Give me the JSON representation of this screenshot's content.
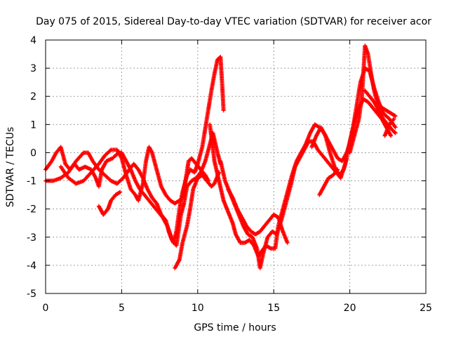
{
  "chart_data": {
    "type": "scatter",
    "title": "Day 075 of 2015, Sidereal Day-to-day VTEC variation (SDTVAR) for receiver acor",
    "xlabel": "GPS time / hours",
    "ylabel": "SDTVAR / TECUs",
    "xlim": [
      0,
      25
    ],
    "ylim": [
      -5,
      4
    ],
    "xticks": [
      "0",
      "5",
      "10",
      "15",
      "20",
      "25"
    ],
    "yticks": [
      "-5",
      "-4",
      "-3",
      "-2",
      "-1",
      "0",
      "1",
      "2",
      "3",
      "4"
    ],
    "grid": true,
    "marker": "plus",
    "color": "#ff0000",
    "series": [
      {
        "name": "SDTVAR",
        "tracks": [
          [
            [
              0,
              -0.6
            ],
            [
              0.4,
              -0.3
            ],
            [
              0.7,
              0.0
            ],
            [
              1.0,
              0.2
            ],
            [
              1.3,
              -0.4
            ],
            [
              1.6,
              -0.6
            ],
            [
              1.9,
              -0.4
            ],
            [
              2.2,
              -0.6
            ],
            [
              2.6,
              -0.5
            ],
            [
              3.0,
              -0.6
            ],
            [
              3.3,
              -0.9
            ],
            [
              3.5,
              -1.2
            ],
            [
              3.7,
              -0.6
            ],
            [
              4.0,
              -0.3
            ],
            [
              4.4,
              -0.2
            ],
            [
              4.8,
              0.0
            ],
            [
              5.0,
              0.0
            ],
            [
              5.3,
              -0.3
            ],
            [
              5.6,
              -0.6
            ],
            [
              5.9,
              -1.0
            ],
            [
              6.2,
              -1.3
            ],
            [
              6.5,
              -1.5
            ],
            [
              6.8,
              -1.7
            ],
            [
              7.1,
              -1.9
            ],
            [
              7.4,
              -2.1
            ],
            [
              7.7,
              -2.3
            ],
            [
              8.0,
              -2.6
            ],
            [
              8.2,
              -2.9
            ],
            [
              8.4,
              -3.2
            ],
            [
              8.6,
              -2.8
            ],
            [
              8.8,
              -2.0
            ],
            [
              9.0,
              -1.4
            ],
            [
              9.3,
              -0.8
            ],
            [
              9.5,
              -0.6
            ],
            [
              9.8,
              -0.7
            ],
            [
              10.0,
              -0.4
            ],
            [
              10.3,
              0.2
            ],
            [
              10.6,
              1.2
            ],
            [
              10.9,
              2.2
            ],
            [
              11.1,
              2.8
            ],
            [
              11.3,
              3.3
            ],
            [
              11.5,
              3.4
            ],
            [
              11.6,
              2.5
            ],
            [
              11.7,
              1.5
            ]
          ],
          [
            [
              0,
              -1.0
            ],
            [
              0.5,
              -1.0
            ],
            [
              1.0,
              -0.9
            ],
            [
              1.5,
              -0.7
            ],
            [
              2.0,
              -0.3
            ],
            [
              2.5,
              0.0
            ],
            [
              2.8,
              0.0
            ],
            [
              3.1,
              -0.3
            ],
            [
              3.5,
              -0.6
            ],
            [
              3.9,
              -0.8
            ],
            [
              4.3,
              -1.0
            ],
            [
              4.7,
              -1.1
            ],
            [
              5.1,
              -0.9
            ],
            [
              5.5,
              -0.6
            ],
            [
              5.8,
              -0.4
            ],
            [
              6.1,
              -0.6
            ],
            [
              6.4,
              -0.9
            ],
            [
              6.7,
              -1.3
            ],
            [
              7.0,
              -1.6
            ],
            [
              7.3,
              -1.8
            ],
            [
              7.6,
              -2.2
            ],
            [
              7.9,
              -2.4
            ],
            [
              8.1,
              -2.8
            ],
            [
              8.3,
              -3.1
            ],
            [
              8.6,
              -3.3
            ],
            [
              8.9,
              -2.2
            ],
            [
              9.1,
              -1.8
            ],
            [
              9.3,
              -1.2
            ],
            [
              9.6,
              -1.0
            ],
            [
              9.9,
              -0.9
            ],
            [
              10.2,
              -0.7
            ],
            [
              10.5,
              -0.3
            ],
            [
              10.8,
              0.3
            ],
            [
              11.0,
              0.7
            ],
            [
              11.3,
              0.0
            ],
            [
              11.5,
              -0.4
            ]
          ],
          [
            [
              1.0,
              -0.5
            ],
            [
              1.5,
              -0.9
            ],
            [
              2.0,
              -1.1
            ],
            [
              2.5,
              -1.0
            ],
            [
              3.0,
              -0.7
            ],
            [
              3.5,
              -0.4
            ],
            [
              3.9,
              -0.1
            ],
            [
              4.3,
              0.1
            ],
            [
              4.7,
              0.1
            ],
            [
              5.0,
              -0.2
            ],
            [
              5.3,
              -0.8
            ],
            [
              5.6,
              -1.3
            ],
            [
              5.9,
              -1.5
            ],
            [
              6.1,
              -1.7
            ],
            [
              6.4,
              -1.1
            ],
            [
              6.6,
              -0.3
            ],
            [
              6.8,
              0.2
            ],
            [
              7.0,
              0.0
            ],
            [
              7.3,
              -0.6
            ],
            [
              7.6,
              -1.2
            ],
            [
              7.9,
              -1.5
            ],
            [
              8.2,
              -1.7
            ],
            [
              8.5,
              -1.8
            ],
            [
              8.8,
              -1.7
            ],
            [
              9.0,
              -1.6
            ],
            [
              9.2,
              -1.0
            ],
            [
              9.4,
              -0.3
            ],
            [
              9.6,
              -0.2
            ],
            [
              9.9,
              -0.4
            ],
            [
              10.2,
              -0.6
            ],
            [
              10.5,
              -0.8
            ],
            [
              10.7,
              -1.0
            ]
          ],
          [
            [
              3.5,
              -1.9
            ],
            [
              3.8,
              -2.2
            ],
            [
              4.1,
              -2.0
            ],
            [
              4.3,
              -1.7
            ],
            [
              4.6,
              -1.5
            ],
            [
              4.9,
              -1.4
            ]
          ],
          [
            [
              8.5,
              -4.1
            ],
            [
              8.8,
              -3.8
            ],
            [
              9.0,
              -3.2
            ],
            [
              9.3,
              -2.6
            ],
            [
              9.5,
              -2.0
            ],
            [
              9.7,
              -1.3
            ],
            [
              10.0,
              -0.9
            ],
            [
              10.3,
              -0.8
            ],
            [
              10.6,
              -1.0
            ],
            [
              10.9,
              -1.2
            ],
            [
              11.1,
              -1.1
            ],
            [
              11.4,
              -0.7
            ]
          ],
          [
            [
              10.8,
              1.0
            ],
            [
              11.1,
              -0.3
            ],
            [
              11.4,
              -1.0
            ],
            [
              11.7,
              -1.7
            ],
            [
              12.0,
              -2.1
            ],
            [
              12.3,
              -2.5
            ],
            [
              12.5,
              -2.9
            ],
            [
              12.8,
              -3.2
            ],
            [
              13.1,
              -3.2
            ],
            [
              13.4,
              -3.1
            ],
            [
              13.7,
              -3.3
            ],
            [
              14.0,
              -3.7
            ],
            [
              14.2,
              -3.5
            ],
            [
              14.5,
              -3.3
            ],
            [
              14.8,
              -3.4
            ],
            [
              15.1,
              -3.4
            ],
            [
              15.3,
              -2.6
            ],
            [
              15.6,
              -2.0
            ],
            [
              15.9,
              -1.4
            ],
            [
              16.2,
              -0.8
            ],
            [
              16.5,
              -0.3
            ],
            [
              16.8,
              0.0
            ],
            [
              17.1,
              0.3
            ],
            [
              17.4,
              0.7
            ],
            [
              17.7,
              1.0
            ],
            [
              18.0,
              0.9
            ],
            [
              18.3,
              0.7
            ],
            [
              18.6,
              0.4
            ],
            [
              18.9,
              0.1
            ],
            [
              19.2,
              -0.2
            ],
            [
              19.5,
              -0.3
            ],
            [
              19.8,
              0.0
            ],
            [
              20.1,
              0.5
            ],
            [
              20.4,
              1.5
            ],
            [
              20.7,
              2.5
            ],
            [
              21.0,
              3.0
            ],
            [
              21.3,
              2.9
            ],
            [
              21.6,
              2.3
            ],
            [
              21.9,
              1.8
            ],
            [
              22.2,
              1.4
            ],
            [
              22.6,
              1.2
            ],
            [
              23.0,
              0.9
            ]
          ],
          [
            [
              11.5,
              -0.3
            ],
            [
              11.8,
              -1.0
            ],
            [
              12.1,
              -1.4
            ],
            [
              12.4,
              -1.8
            ],
            [
              12.7,
              -2.2
            ],
            [
              13.0,
              -2.6
            ],
            [
              13.3,
              -2.9
            ],
            [
              13.6,
              -3.0
            ],
            [
              13.9,
              -3.4
            ],
            [
              14.1,
              -4.1
            ],
            [
              14.3,
              -3.6
            ],
            [
              14.6,
              -3.0
            ],
            [
              14.9,
              -2.8
            ],
            [
              15.2,
              -2.9
            ],
            [
              15.5,
              -2.4
            ],
            [
              15.8,
              -1.8
            ],
            [
              16.1,
              -1.2
            ],
            [
              16.4,
              -0.5
            ],
            [
              16.7,
              -0.2
            ],
            [
              17.0,
              0.1
            ],
            [
              17.3,
              0.4
            ],
            [
              17.6,
              0.4
            ],
            [
              17.9,
              0.1
            ],
            [
              18.2,
              -0.1
            ],
            [
              18.5,
              -0.3
            ],
            [
              18.8,
              -0.5
            ],
            [
              19.1,
              -0.7
            ],
            [
              19.4,
              -0.9
            ],
            [
              19.7,
              -0.4
            ],
            [
              20.0,
              0.4
            ],
            [
              20.3,
              1.1
            ],
            [
              20.6,
              1.6
            ],
            [
              20.9,
              1.9
            ],
            [
              21.2,
              1.8
            ],
            [
              21.5,
              1.6
            ],
            [
              21.8,
              1.4
            ],
            [
              22.1,
              1.2
            ],
            [
              22.4,
              0.9
            ],
            [
              22.7,
              0.6
            ]
          ],
          [
            [
              12.0,
              -1.3
            ],
            [
              12.3,
              -1.6
            ],
            [
              12.6,
              -2.0
            ],
            [
              12.9,
              -2.3
            ],
            [
              13.2,
              -2.6
            ],
            [
              13.5,
              -2.8
            ],
            [
              13.8,
              -2.9
            ],
            [
              14.1,
              -2.8
            ],
            [
              14.4,
              -2.6
            ],
            [
              14.7,
              -2.4
            ],
            [
              15.0,
              -2.2
            ],
            [
              15.3,
              -2.3
            ],
            [
              15.6,
              -2.8
            ],
            [
              15.9,
              -3.2
            ]
          ],
          [
            [
              17.5,
              0.2
            ],
            [
              17.8,
              0.6
            ],
            [
              18.1,
              0.9
            ],
            [
              18.4,
              0.6
            ],
            [
              18.7,
              0.0
            ],
            [
              19.0,
              -0.5
            ],
            [
              19.3,
              -0.8
            ],
            [
              19.6,
              -0.6
            ],
            [
              19.8,
              -0.2
            ]
          ],
          [
            [
              18.0,
              -1.5
            ],
            [
              18.3,
              -1.2
            ],
            [
              18.6,
              -0.9
            ],
            [
              18.9,
              -0.8
            ],
            [
              19.2,
              -0.6
            ]
          ],
          [
            [
              20.0,
              0.0
            ],
            [
              20.3,
              0.6
            ],
            [
              20.6,
              1.2
            ],
            [
              20.8,
              2.0
            ],
            [
              21.0,
              3.8
            ],
            [
              21.2,
              3.5
            ],
            [
              21.4,
              2.8
            ],
            [
              21.6,
              2.2
            ],
            [
              21.8,
              1.8
            ],
            [
              22.1,
              1.6
            ],
            [
              22.4,
              1.5
            ],
            [
              22.7,
              1.4
            ],
            [
              23.0,
              1.3
            ]
          ],
          [
            [
              21.0,
              2.2
            ],
            [
              21.3,
              2.0
            ],
            [
              21.6,
              1.8
            ],
            [
              21.9,
              1.5
            ],
            [
              22.2,
              1.2
            ],
            [
              22.5,
              1.0
            ],
            [
              22.8,
              0.8
            ],
            [
              23.0,
              0.7
            ]
          ],
          [
            [
              22.3,
              0.6
            ],
            [
              22.6,
              1.0
            ],
            [
              22.9,
              1.2
            ]
          ]
        ]
      }
    ]
  }
}
